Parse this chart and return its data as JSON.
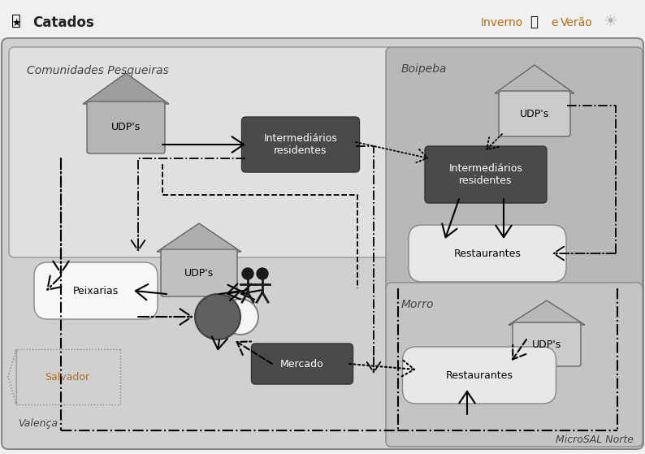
{
  "bg": "#d8d8d8",
  "label_catados": "Catados",
  "label_inverno": "Inverno",
  "label_e": "e",
  "label_verao": "Verão",
  "label_microsal": "MicroSAL Norte",
  "label_comunidades": "Comunidades Pesqueiras",
  "label_boipeba": "Boipeba",
  "label_morro": "Morro",
  "label_udps": "UDP's",
  "label_inter": "Intermediários\nresidentes",
  "label_peixarias": "Peixarias",
  "label_mercado": "Mercado",
  "label_restaurantes": "Restaurantes",
  "label_salvador": "Salvador",
  "label_valenca": "Valença",
  "color_outer_bg": "#d0d0d0",
  "color_com_bg": "#e0e0e0",
  "color_boi_bg": "#b8b8b8",
  "color_mor_bg": "#c4c4c4",
  "color_house_body": "#b0b0b0",
  "color_house_roof": "#999999",
  "color_house_body2": "#bdbdbd",
  "color_house_roof2": "#ababab",
  "color_dark_box": "#4a4a4a",
  "color_restaurante": "#e8e8e8",
  "color_peixaria": "#f8f8f8",
  "color_circle_dark": "#606060",
  "color_circle_light": "#f5f5f5",
  "color_salvador_text": "#b07020",
  "color_valenca_text": "#444444",
  "color_header_text": "#b07020"
}
